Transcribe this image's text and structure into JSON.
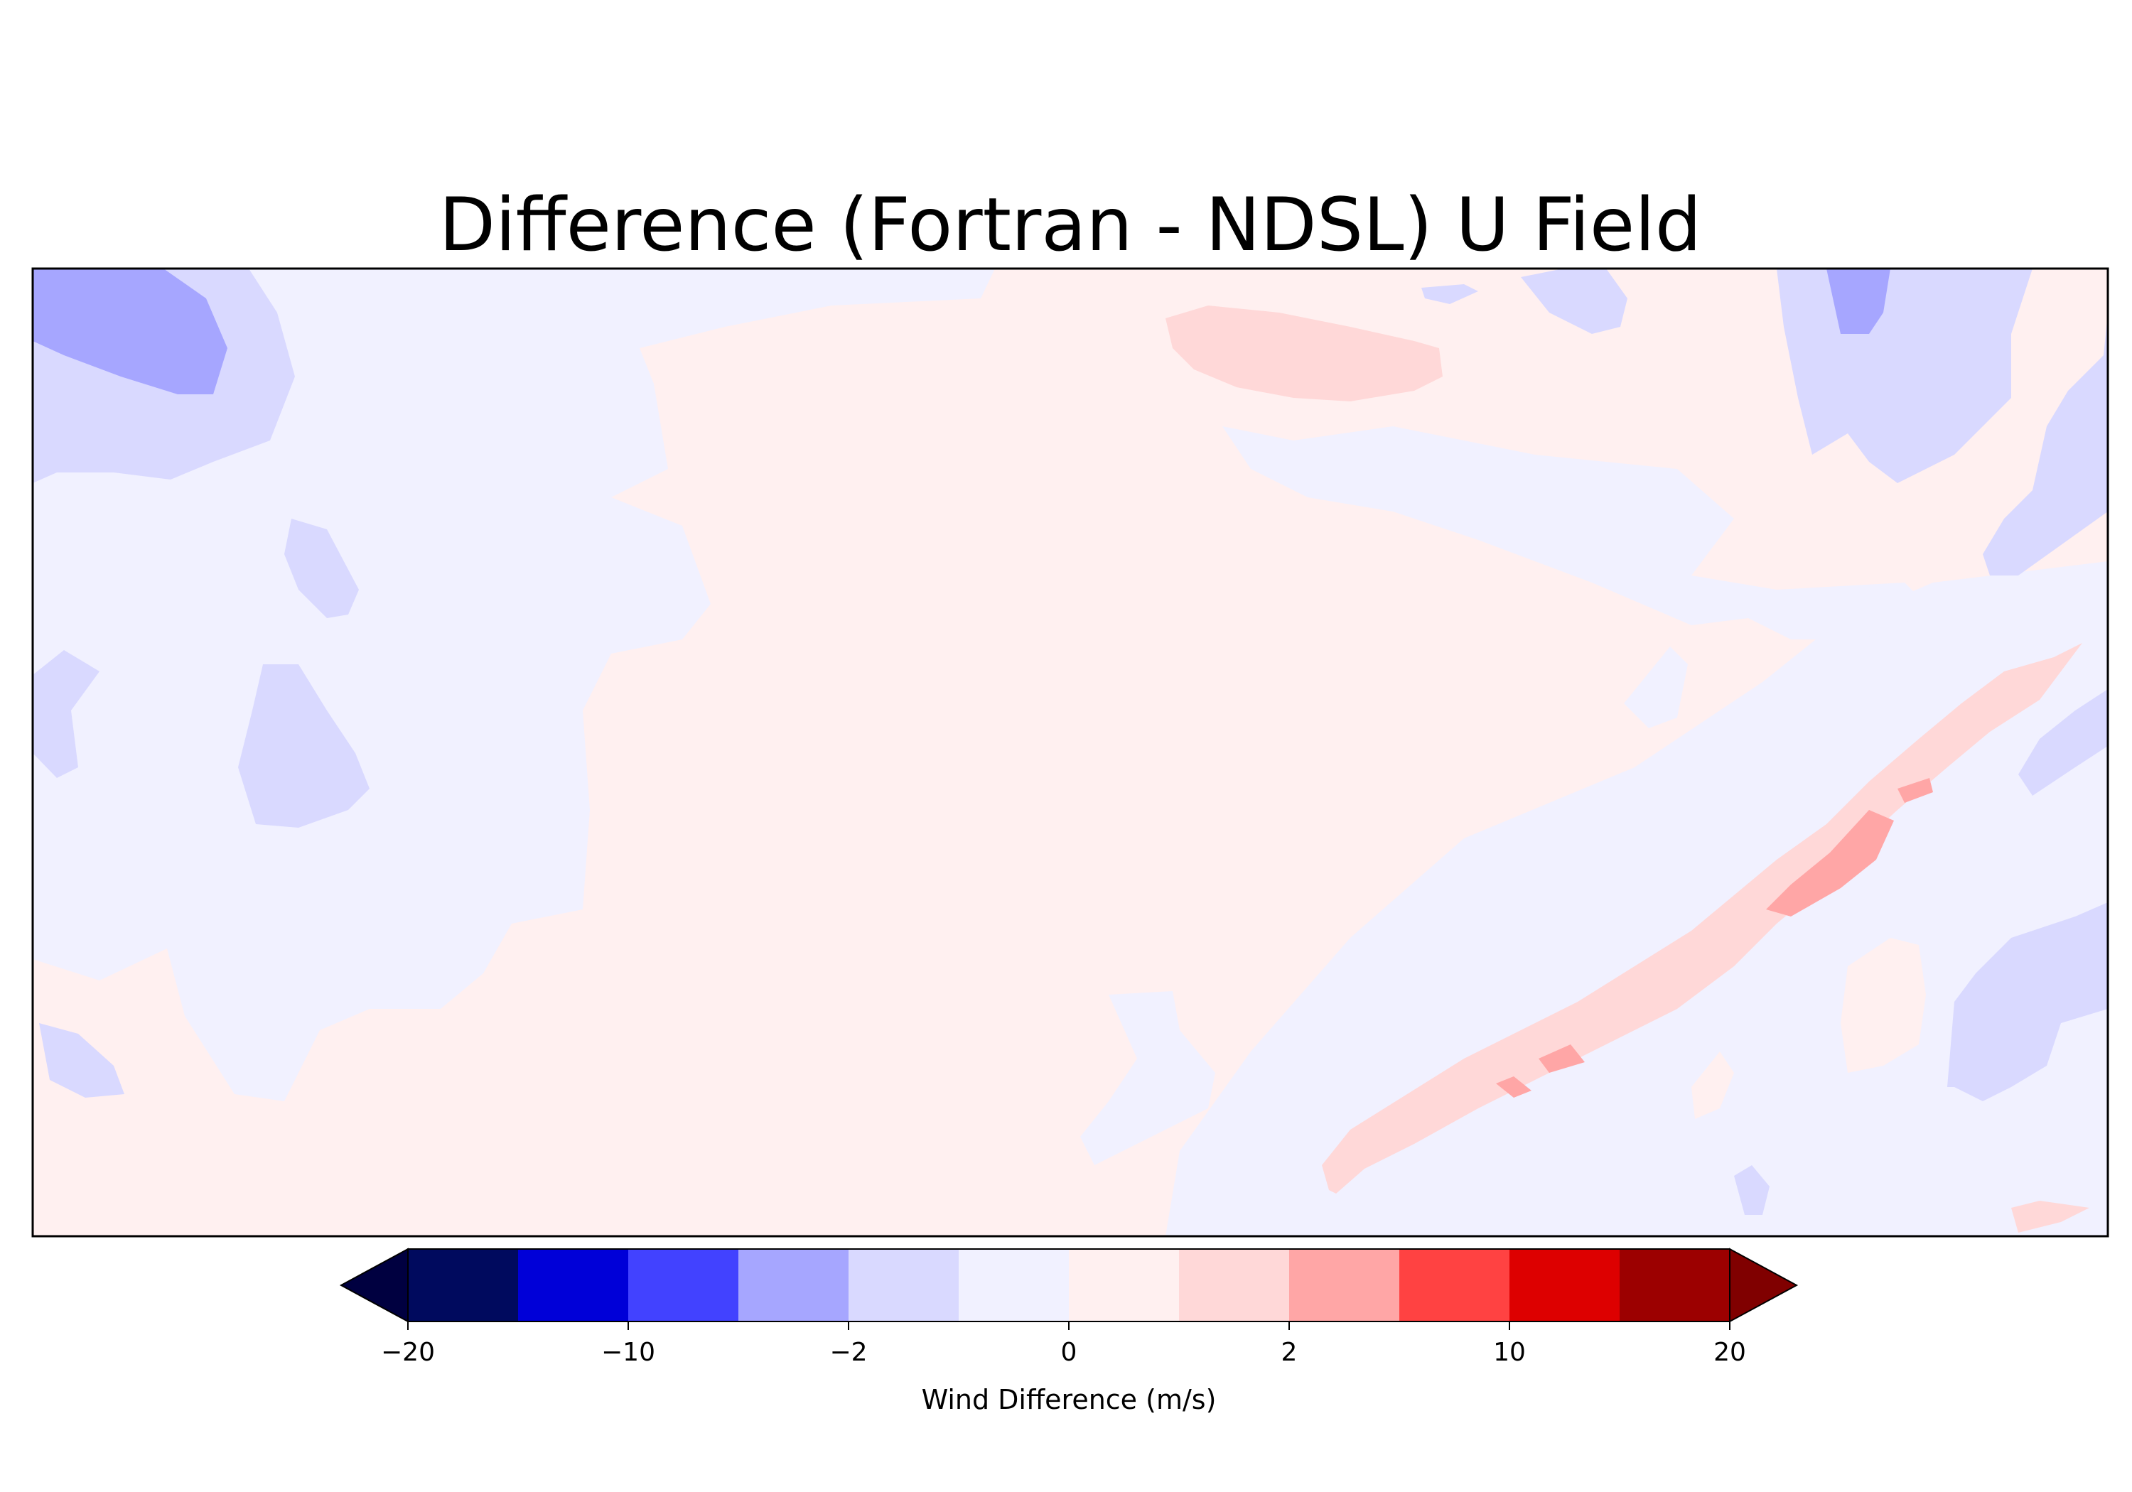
{
  "chart_data": {
    "type": "heatmap",
    "title": "Difference (Fortran - NDSL) U Field",
    "xlabel": "",
    "ylabel": "",
    "colorbar": {
      "label": "Wind Difference (m/s)",
      "boundaries": [
        -20,
        -15,
        -10,
        -5,
        -2,
        -1,
        0,
        1,
        2,
        5,
        10,
        15,
        20
      ],
      "tick_values": [
        -20,
        -10,
        -2,
        0,
        2,
        10,
        20
      ],
      "tick_labels": [
        "−20",
        "−10",
        "−2",
        "0",
        "2",
        "10",
        "20"
      ],
      "colors": [
        "#000a5e",
        "#0000d8",
        "#4242ff",
        "#a6a6ff",
        "#d9d9ff",
        "#f1f1ff",
        "#fff0f0",
        "#ffd8d8",
        "#ffa6a6",
        "#ff4242",
        "#dd0000",
        "#9c0000"
      ],
      "under_color": "#000040",
      "over_color": "#800000",
      "extend": "both",
      "orientation": "horizontal"
    },
    "field_description": "Mostly near-zero differences (bins -1..0 and 0..1); diagonal positive band toward lower right reaching 2..5; negative patches up to -5..-2 in upper left and upper right."
  }
}
